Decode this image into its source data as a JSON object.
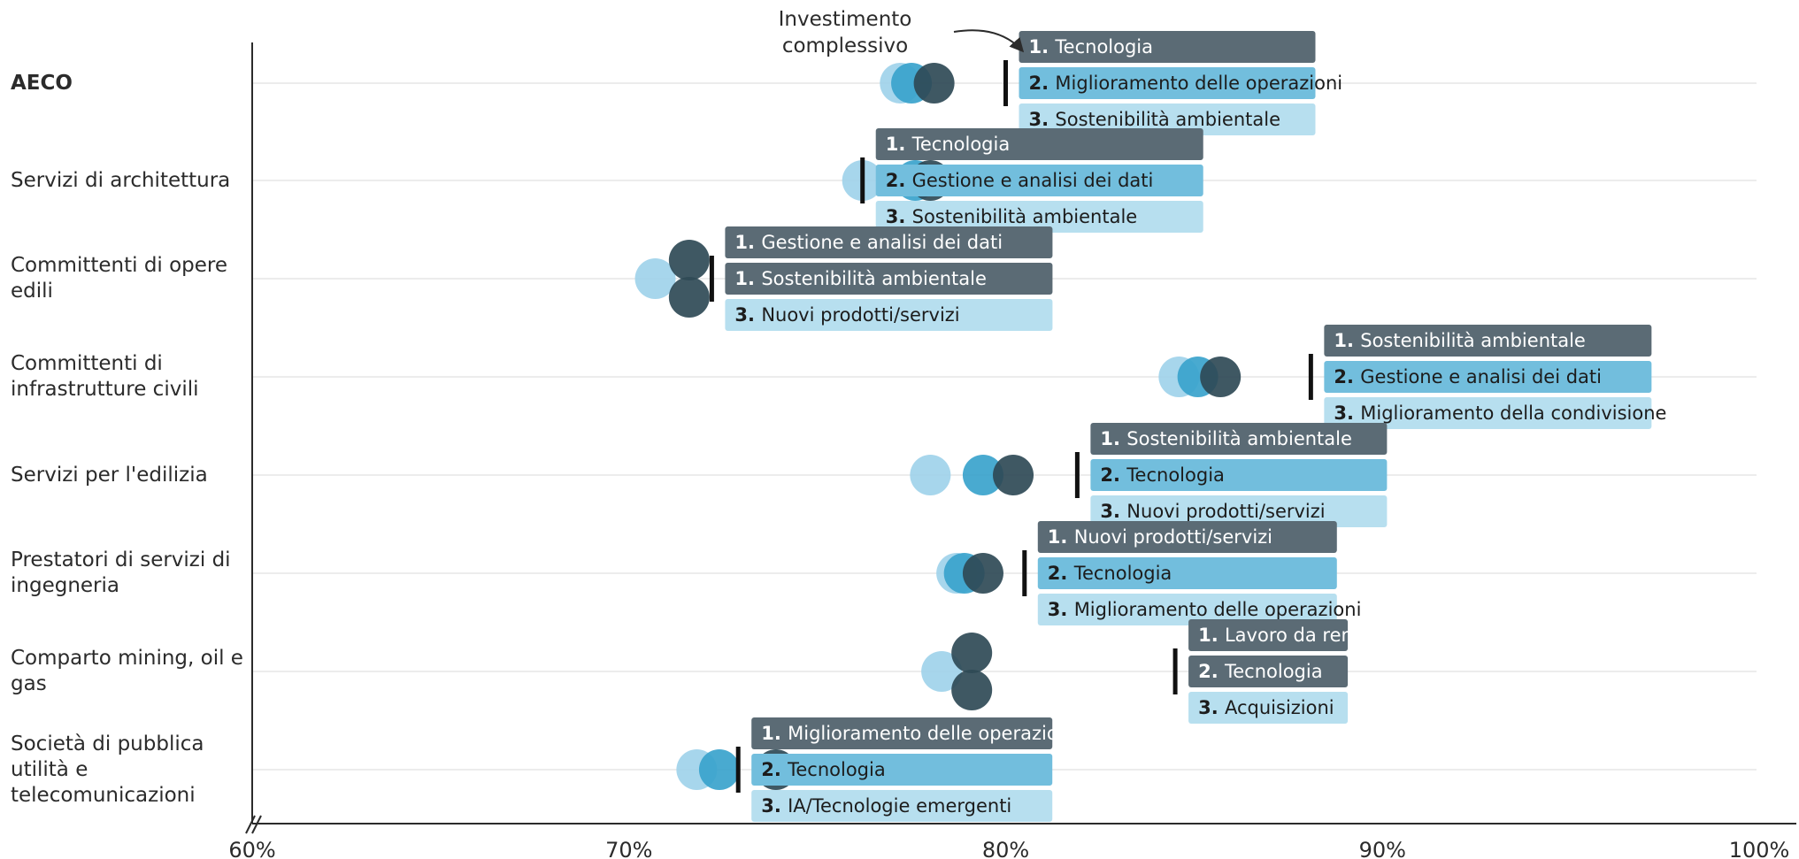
{
  "chart_data": {
    "type": "dot",
    "x_axis": {
      "min": 60,
      "max": 100,
      "ticks": [
        "60%",
        "70%",
        "80%",
        "90%",
        "100%"
      ]
    },
    "annotation": {
      "text_line1": "Investimento",
      "text_line2": "complessivo"
    },
    "colors": {
      "dark": "#2f4a56",
      "mid": "#3aa3cc",
      "light": "#9fd3ea",
      "box_dark": "#5b6b75",
      "box_mid": "#72bedd",
      "box_light": "#b7dfef",
      "axis": "#2b2b2b",
      "grid": "#e6e6e6"
    },
    "categories": [
      {
        "label": "AECO",
        "bold": true,
        "marker": 80.0,
        "dots": [
          {
            "value": 78.1,
            "shade": "dark"
          },
          {
            "value": 77.5,
            "shade": "mid"
          },
          {
            "value": 77.2,
            "shade": "light"
          }
        ],
        "items": [
          {
            "rank": "1.",
            "text": "Tecnologia",
            "shade": "dark"
          },
          {
            "rank": "2.",
            "text": "Miglioramento delle operazioni",
            "shade": "mid"
          },
          {
            "rank": "3.",
            "text": "Sostenibilità ambientale",
            "shade": "light"
          }
        ]
      },
      {
        "label": "Servizi di architettura",
        "bold": false,
        "marker": 76.2,
        "dots": [
          {
            "value": 78.0,
            "shade": "dark"
          },
          {
            "value": 77.6,
            "shade": "mid"
          },
          {
            "value": 76.2,
            "shade": "light"
          }
        ],
        "items": [
          {
            "rank": "1.",
            "text": "Tecnologia",
            "shade": "dark"
          },
          {
            "rank": "2.",
            "text": "Gestione e analisi dei dati",
            "shade": "mid"
          },
          {
            "rank": "3.",
            "text": "Sostenibilità ambientale",
            "shade": "light"
          }
        ]
      },
      {
        "label": "Committenti di opere edili",
        "bold": false,
        "marker": 72.2,
        "dots": [
          {
            "value": 71.6,
            "shade": "dark",
            "dy": -0.5
          },
          {
            "value": 71.6,
            "shade": "dark",
            "dy": 0.5
          },
          {
            "value": 70.7,
            "shade": "light"
          }
        ],
        "items": [
          {
            "rank": "1.",
            "text": "Gestione e analisi dei dati",
            "shade": "dark"
          },
          {
            "rank": "1.",
            "text": "Sostenibilità ambientale",
            "shade": "dark"
          },
          {
            "rank": "3.",
            "text": "Nuovi prodotti/servizi",
            "shade": "light"
          }
        ]
      },
      {
        "label": "Committenti di infrastrutture civili",
        "bold": false,
        "marker": 88.1,
        "dots": [
          {
            "value": 85.7,
            "shade": "dark"
          },
          {
            "value": 85.1,
            "shade": "mid"
          },
          {
            "value": 84.6,
            "shade": "light"
          }
        ],
        "items": [
          {
            "rank": "1.",
            "text": "Sostenibilità ambientale",
            "shade": "dark"
          },
          {
            "rank": "2.",
            "text": "Gestione e analisi dei dati",
            "shade": "mid"
          },
          {
            "rank": "3.",
            "text": "Miglioramento della condivisione",
            "shade": "light"
          }
        ]
      },
      {
        "label": "Servizi per l'edilizia",
        "bold": false,
        "marker": 81.9,
        "dots": [
          {
            "value": 80.2,
            "shade": "dark"
          },
          {
            "value": 79.4,
            "shade": "mid"
          },
          {
            "value": 78.0,
            "shade": "light"
          }
        ],
        "items": [
          {
            "rank": "1.",
            "text": "Sostenibilità ambientale",
            "shade": "dark"
          },
          {
            "rank": "2.",
            "text": "Tecnologia",
            "shade": "mid"
          },
          {
            "rank": "3.",
            "text": "Nuovi prodotti/servizi",
            "shade": "light"
          }
        ]
      },
      {
        "label": "Prestatori di servizi di ingegneria",
        "bold": false,
        "marker": 80.5,
        "dots": [
          {
            "value": 79.4,
            "shade": "dark"
          },
          {
            "value": 78.9,
            "shade": "mid"
          },
          {
            "value": 78.7,
            "shade": "light"
          }
        ],
        "items": [
          {
            "rank": "1.",
            "text": "Nuovi prodotti/servizi",
            "shade": "dark"
          },
          {
            "rank": "2.",
            "text": "Tecnologia",
            "shade": "mid"
          },
          {
            "rank": "3.",
            "text": "Miglioramento delle operazioni",
            "shade": "light"
          }
        ]
      },
      {
        "label": "Comparto mining, oil e gas",
        "bold": false,
        "marker": 84.5,
        "dots": [
          {
            "value": 79.1,
            "shade": "dark",
            "dy": -0.5
          },
          {
            "value": 79.1,
            "shade": "dark",
            "dy": 0.5
          },
          {
            "value": 78.3,
            "shade": "light"
          }
        ],
        "items": [
          {
            "rank": "1.",
            "text": "Lavoro da remoto",
            "shade": "dark"
          },
          {
            "rank": "2.",
            "text": "Tecnologia",
            "shade": "dark"
          },
          {
            "rank": "3.",
            "text": "Acquisizioni",
            "shade": "light"
          }
        ]
      },
      {
        "label": "Società di pubblica utilità e telecomunicazioni",
        "bold": false,
        "marker": 72.9,
        "dots": [
          {
            "value": 73.9,
            "shade": "dark"
          },
          {
            "value": 72.4,
            "shade": "mid"
          },
          {
            "value": 71.8,
            "shade": "light"
          }
        ],
        "items": [
          {
            "rank": "1.",
            "text": "Miglioramento delle operazioni",
            "shade": "dark"
          },
          {
            "rank": "2.",
            "text": "Tecnologia",
            "shade": "mid"
          },
          {
            "rank": "3.",
            "text": "IA/Tecnologie emergenti",
            "shade": "light"
          }
        ]
      }
    ]
  }
}
